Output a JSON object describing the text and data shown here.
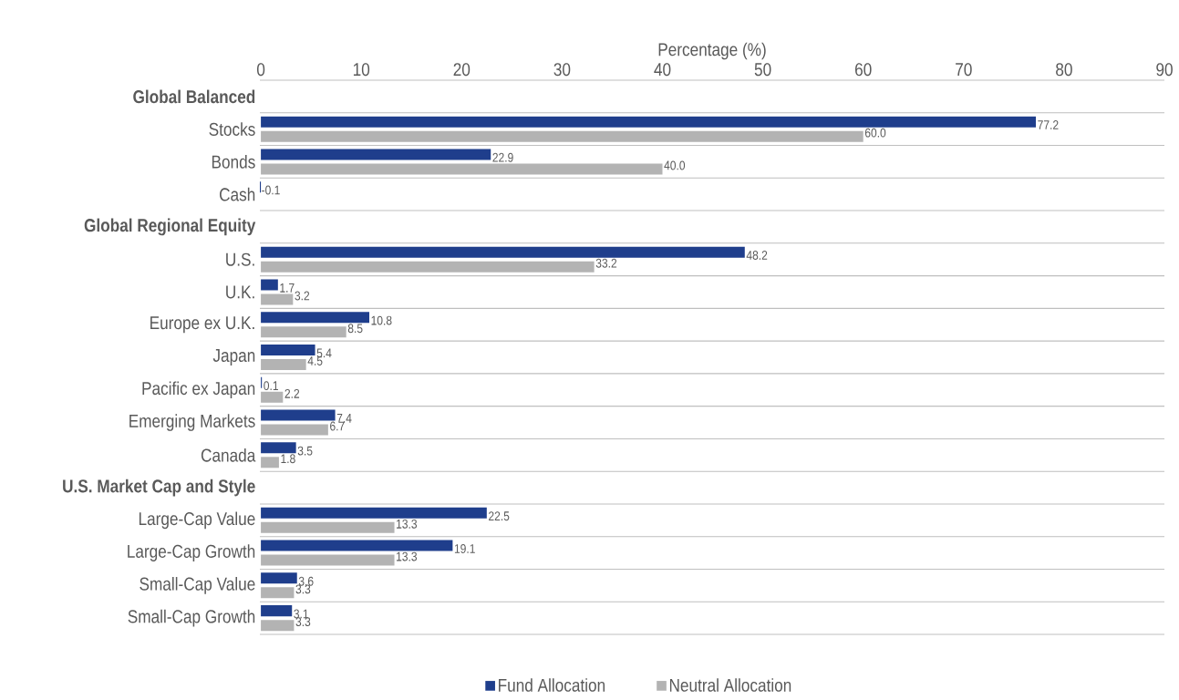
{
  "chart_data": {
    "type": "bar",
    "orientation": "horizontal",
    "categories": [
      "**Global Balanced**",
      "Stocks",
      "Bonds",
      "Cash",
      "**Global Regional Equity**",
      "U.S.",
      "U.K.",
      "Europe ex U.K.",
      "Japan",
      "Pacific ex Japan",
      "Emerging Markets",
      "Canada",
      "**U.S. Market Cap and Style**",
      "Large-Cap Value",
      "Large-Cap Growth",
      "Small-Cap Value",
      "Small-Cap Growth"
    ],
    "series": [
      {
        "name": "Fund Allocation",
        "color": "#1f3e8c",
        "values": [
          null,
          77.2,
          22.9,
          -0.1,
          null,
          48.2,
          1.7,
          10.8,
          5.4,
          0.1,
          7.4,
          3.5,
          null,
          22.5,
          19.1,
          3.6,
          3.1
        ],
        "value_labels": [
          null,
          "77.2",
          "22.9",
          "-0.1",
          null,
          "48.2",
          "1.7",
          "10.8",
          "5.4",
          "0.1",
          "7.4",
          "3.5",
          null,
          "22.5",
          "19.1",
          "3.6",
          "3.1"
        ]
      },
      {
        "name": "Neutral Allocation",
        "color": "#b3b3b3",
        "values": [
          null,
          60.0,
          40.0,
          null,
          null,
          33.2,
          3.2,
          8.5,
          4.5,
          2.2,
          6.7,
          1.8,
          null,
          13.3,
          13.3,
          3.3,
          3.3
        ],
        "value_labels": [
          null,
          "60.0",
          "40.0",
          null,
          null,
          "33.2",
          "3.2",
          "8.5",
          "4.5",
          "2.2",
          "6.7",
          "1.8",
          null,
          "13.3",
          "13.3",
          "3.3",
          "3.3"
        ]
      }
    ],
    "xlabel": "Percentage (%)",
    "xlim": [
      -0.1,
      90
    ],
    "xticks": [
      0,
      10,
      20,
      30,
      40,
      50,
      60,
      70,
      80,
      90
    ],
    "grid": "y",
    "legend": "bottom"
  }
}
